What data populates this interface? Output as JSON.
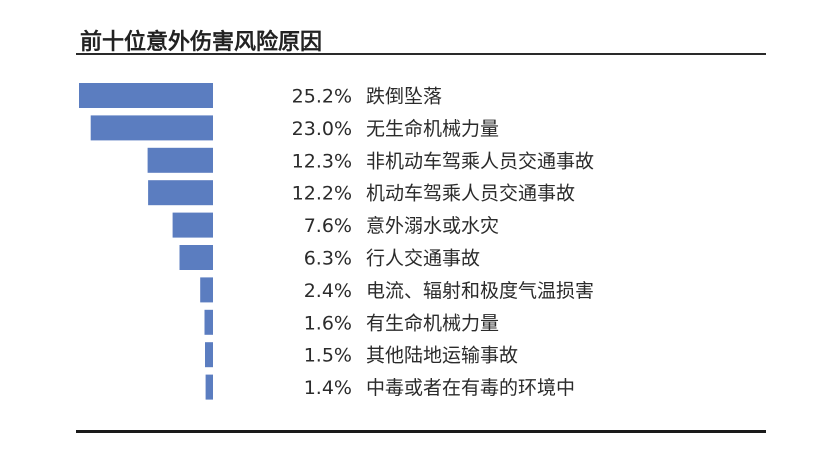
{
  "chart_data": {
    "type": "bar",
    "orientation": "horizontal",
    "title": "前十位意外伤害风险原因",
    "unit": "%",
    "categories": [
      "跌倒坠落",
      "无生命机械力量",
      "非机动车驾乘人员交通事故",
      "机动车驾乘人员交通事故",
      "意外溺水或水灾",
      "行人交通事故",
      "电流、辐射和极度气温损害",
      "有生命机械力量",
      "其他陆地运输事故",
      "中毒或者在有毒的环境中"
    ],
    "values": [
      25.2,
      23.0,
      12.3,
      12.2,
      7.6,
      6.3,
      2.4,
      1.6,
      1.5,
      1.4
    ],
    "value_labels": [
      "25.2%",
      "23.0%",
      "12.3%",
      "12.2%",
      "7.6%",
      "6.3%",
      "2.4%",
      "1.6%",
      "1.5%",
      "1.4%"
    ],
    "bar_color": "#5b7dc0",
    "grid": false,
    "legend": "none"
  }
}
